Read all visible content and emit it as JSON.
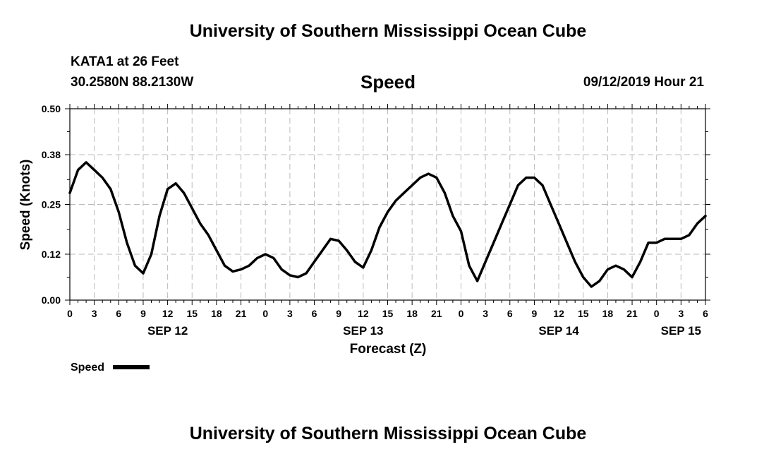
{
  "header": {
    "title": "University of Southern Mississippi Ocean Cube",
    "station": "KATA1 at 26 Feet",
    "location": "30.2580N 88.2130W",
    "variable": "Speed",
    "issued": "09/12/2019 Hour 21"
  },
  "footer": {
    "title": "University of Southern Mississippi Ocean Cube"
  },
  "legend": {
    "label": "Speed"
  },
  "colors": {
    "line": "#000000",
    "grid": "#bbbbbb",
    "background": "#ffffff"
  },
  "chart_data": {
    "type": "line",
    "ylabel": "Speed (Knots)",
    "xlabel": "Forecast (Z)",
    "ylim": [
      0,
      0.5
    ],
    "y_ticks": [
      "0.00",
      "0.12",
      "0.25",
      "0.38",
      "0.50"
    ],
    "x_ticks": [
      "0",
      "3",
      "6",
      "9",
      "12",
      "15",
      "18",
      "21",
      "0",
      "3",
      "6",
      "9",
      "12",
      "15",
      "18",
      "21",
      "0",
      "3",
      "6",
      "9",
      "12",
      "15",
      "18",
      "21",
      "0",
      "3",
      "6"
    ],
    "date_labels": [
      {
        "label": "SEP 12",
        "tick_index": 4
      },
      {
        "label": "SEP 13",
        "tick_index": 12
      },
      {
        "label": "SEP 14",
        "tick_index": 20
      },
      {
        "label": "SEP 15",
        "tick_index": 25
      }
    ],
    "grid": true,
    "legend_position": "bottom-left",
    "series": [
      {
        "name": "Speed",
        "x_hours": [
          0,
          1,
          2,
          3,
          4,
          5,
          6,
          7,
          8,
          9,
          10,
          11,
          12,
          13,
          14,
          15,
          16,
          17,
          18,
          19,
          20,
          21,
          22,
          23,
          24,
          25,
          26,
          27,
          28,
          29,
          30,
          31,
          32,
          33,
          34,
          35,
          36,
          37,
          38,
          39,
          40,
          41,
          42,
          43,
          44,
          45,
          46,
          47,
          48,
          49,
          50,
          51,
          52,
          53,
          54,
          55,
          56,
          57,
          58,
          59,
          60,
          61,
          62,
          63,
          64,
          65,
          66,
          67,
          68,
          69,
          70,
          71,
          72,
          73,
          74,
          75,
          76,
          77,
          78
        ],
        "values": [
          0.28,
          0.34,
          0.36,
          0.34,
          0.32,
          0.29,
          0.23,
          0.15,
          0.09,
          0.07,
          0.12,
          0.22,
          0.29,
          0.305,
          0.28,
          0.24,
          0.2,
          0.17,
          0.13,
          0.09,
          0.075,
          0.08,
          0.09,
          0.11,
          0.12,
          0.11,
          0.08,
          0.065,
          0.06,
          0.07,
          0.1,
          0.13,
          0.16,
          0.155,
          0.13,
          0.1,
          0.085,
          0.13,
          0.19,
          0.23,
          0.26,
          0.28,
          0.3,
          0.32,
          0.33,
          0.32,
          0.28,
          0.22,
          0.18,
          0.09,
          0.05,
          0.1,
          0.15,
          0.2,
          0.25,
          0.3,
          0.32,
          0.32,
          0.3,
          0.25,
          0.2,
          0.15,
          0.1,
          0.06,
          0.035,
          0.05,
          0.08,
          0.09,
          0.08,
          0.06,
          0.1,
          0.15,
          0.15,
          0.16,
          0.16,
          0.16,
          0.17,
          0.2,
          0.22
        ]
      }
    ]
  }
}
